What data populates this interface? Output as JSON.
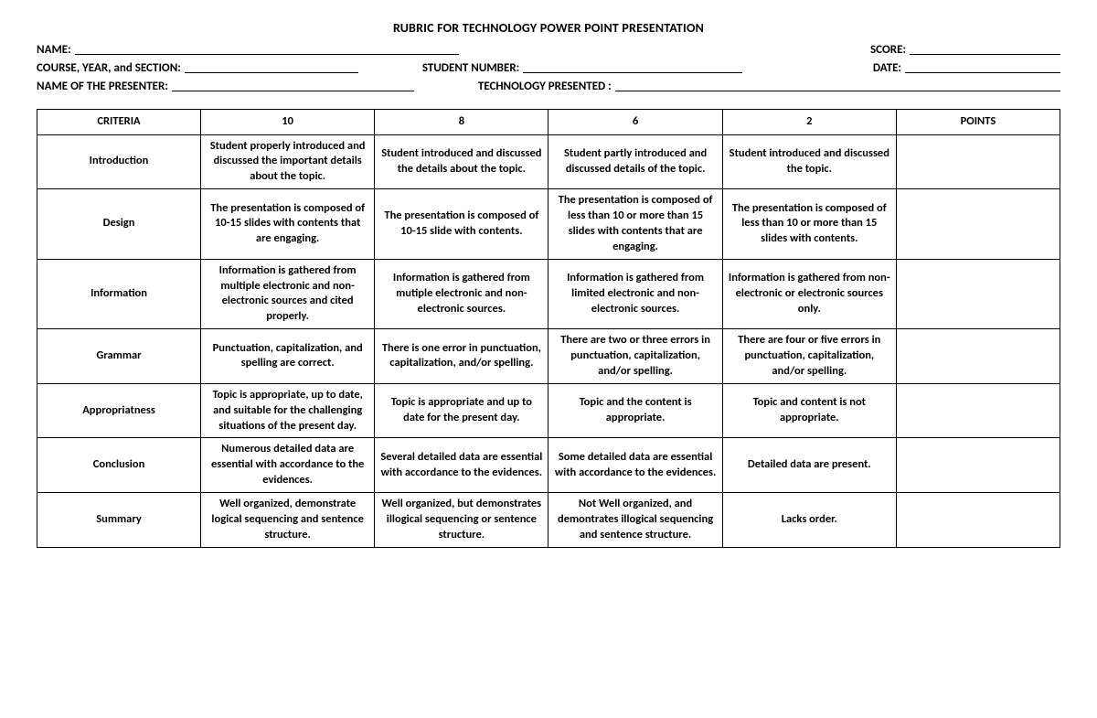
{
  "title": "RUBRIC FOR TECHNOLOGY POWER POINT PRESENTATION",
  "header": {
    "name_label": "NAME:",
    "score_label": "SCORE:",
    "course_label": "COURSE, YEAR, and SECTION:",
    "studentnum_label": "STUDENT NUMBER:",
    "date_label": "DATE:",
    "presenter_label": "NAME OF THE PRESENTER:",
    "tech_label": "TECHNOLOGY PRESENTED :"
  },
  "table": {
    "columns": [
      "CRITERIA",
      "10",
      "8",
      "6",
      "2",
      "POINTS"
    ],
    "rows": [
      {
        "criteria": "Introduction",
        "c10": "Student properly introduced and discussed the important details about the topic.",
        "c8": "Student introduced and discussed the details about the topic.",
        "c6": "Student partly introduced and discussed details of the topic.",
        "c2": "Student introduced and discussed the topic.",
        "points": ""
      },
      {
        "criteria": "Design",
        "c10": "The presentation is composed of 10-15 slides with contents that are engaging.",
        "c8": "The presentation is composed of 10-15 slide with contents.",
        "c6": "The presentation is composed of less than 10 or more than 15 slides with contents that are engaging.",
        "c2": "The presentation is composed of less than 10 or more than 15 slides with contents.",
        "points": ""
      },
      {
        "criteria": "Information",
        "c10": "Information is gathered from multiple electronic and non-electronic sources and cited properly.",
        "c8": "Information is gathered from mutiple electronic and non-electronic sources.",
        "c6": "Information is gathered from limited electronic and non-electronic sources.",
        "c2": "Information is gathered from non-electronic or electronic sources only.",
        "points": ""
      },
      {
        "criteria": "Grammar",
        "c10": "Punctuation, capitalization, and spelling are correct.",
        "c8": "There is one error in punctuation, capitalization, and/or spelling.",
        "c6": "There are two or three errors in punctuation, capitalization, and/or spelling.",
        "c2": "There are four or five errors in punctuation, capitalization, and/or spelling.",
        "points": ""
      },
      {
        "criteria": "Appropriatness",
        "c10": "Topic is appropriate, up to date, and suitable for the challenging situations of the present day.",
        "c8": "Topic is appropriate and up to date for the present day.",
        "c6": "Topic and the content is appropriate.",
        "c2": "Topic and content is not appropriate.",
        "points": ""
      },
      {
        "criteria": "Conclusion",
        "c10": "Numerous detailed data are essential with accordance to the evidences.",
        "c8": "Several detailed data are essential with accordance to the evidences.",
        "c6": "Some detailed data are essential with accordance to the evidences.",
        "c2": "Detailed data are present.",
        "points": ""
      },
      {
        "criteria": "Summary",
        "c10": "Well organized, demonstrate logical sequencing and sentence structure.",
        "c8": "Well organized, but demonstrates illogical sequencing or sentence structure.",
        "c6": "Not Well organized, and demontrates illogical sequencing and sentence structure.",
        "c2": "Lacks order.",
        "points": ""
      }
    ]
  }
}
